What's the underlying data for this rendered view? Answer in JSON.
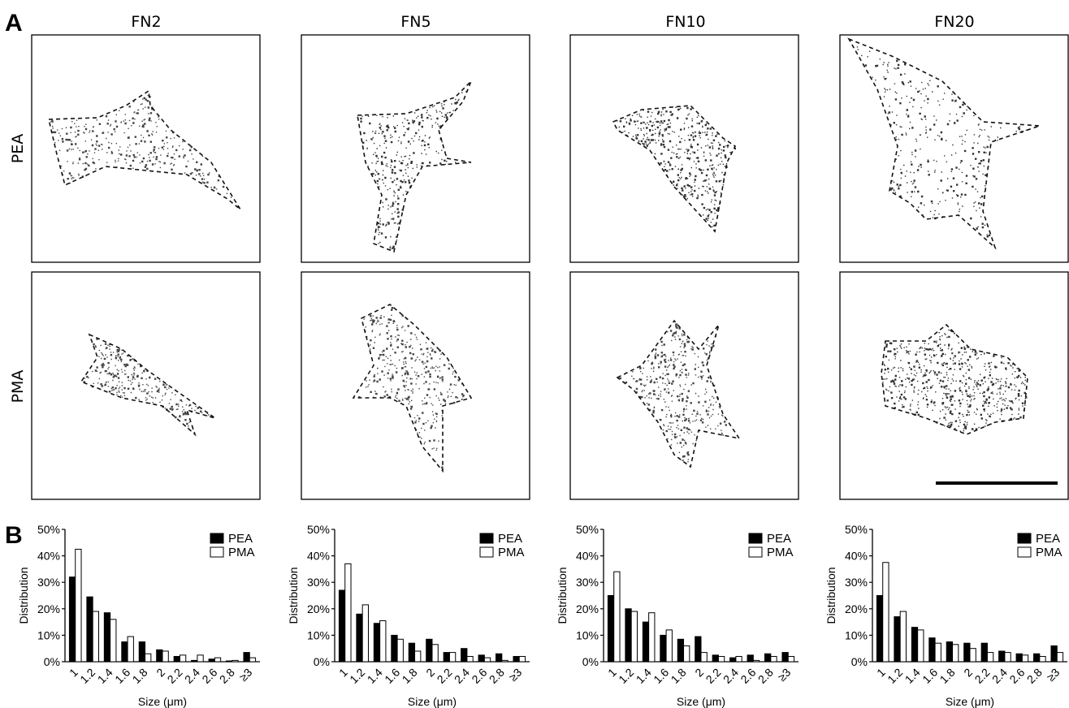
{
  "panel_labels": {
    "a": "A",
    "b": "B"
  },
  "columns": [
    "FN2",
    "FN5",
    "FN10",
    "FN20"
  ],
  "rows": [
    "PEA",
    "PMA"
  ],
  "colors": {
    "pea": "#000000",
    "pma": "#ffffff",
    "stroke": "#000000"
  },
  "chart_data": [
    {
      "type": "bar",
      "categories": [
        "1",
        "1.2",
        "1.4",
        "1.6",
        "1.8",
        "2",
        "2.2",
        "2.4",
        "2.6",
        "2.8",
        "≥3"
      ],
      "series": [
        {
          "name": "PEA",
          "values": [
            32,
            24.5,
            18.5,
            7.5,
            7.5,
            4.5,
            2,
            0.5,
            1,
            0.3,
            3.5
          ]
        },
        {
          "name": "PMA",
          "values": [
            42.5,
            19,
            16,
            9.5,
            3,
            4,
            2.5,
            2.5,
            1.5,
            0.5,
            1.5
          ]
        }
      ],
      "xlabel": "Size (μm)",
      "ylabel": "Distribution",
      "yticks": [
        "0%",
        "10%",
        "20%",
        "30%",
        "40%",
        "50%"
      ],
      "ylim": [
        0,
        50
      ]
    },
    {
      "type": "bar",
      "categories": [
        "1",
        "1.2",
        "1.4",
        "1.6",
        "1.8",
        "2",
        "2.2",
        "2.4",
        "2.6",
        "2.8",
        "≥3"
      ],
      "series": [
        {
          "name": "PEA",
          "values": [
            27,
            18,
            14.5,
            10,
            7,
            8.5,
            3.5,
            5,
            2.5,
            3,
            2
          ]
        },
        {
          "name": "PMA",
          "values": [
            37,
            21.5,
            15.5,
            8.5,
            4,
            6.5,
            3.5,
            2,
            1.5,
            0.5,
            2
          ]
        }
      ],
      "xlabel": "Size (μm)",
      "ylabel": "Distribution",
      "yticks": [
        "0%",
        "10%",
        "20%",
        "30%",
        "40%",
        "50%"
      ],
      "ylim": [
        0,
        50
      ]
    },
    {
      "type": "bar",
      "categories": [
        "1",
        "1.2",
        "1.4",
        "1.6",
        "1.8",
        "2",
        "2.2",
        "2.4",
        "2.6",
        "2.8",
        "≥3"
      ],
      "series": [
        {
          "name": "PEA",
          "values": [
            25,
            20,
            15,
            10,
            8.5,
            9.5,
            2.5,
            1.5,
            2.5,
            3,
            3.5
          ]
        },
        {
          "name": "PMA",
          "values": [
            34,
            19,
            18.5,
            12,
            6,
            3.5,
            2,
            2,
            0.5,
            2,
            2
          ]
        }
      ],
      "xlabel": "Size (μm)",
      "ylabel": "Distribution",
      "yticks": [
        "0%",
        "10%",
        "20%",
        "30%",
        "40%",
        "50%"
      ],
      "ylim": [
        0,
        50
      ]
    },
    {
      "type": "bar",
      "categories": [
        "1",
        "1.2",
        "1.4",
        "1.6",
        "1.8",
        "2",
        "2.2",
        "2.4",
        "2.6",
        "2.8",
        "≥3"
      ],
      "series": [
        {
          "name": "PEA",
          "values": [
            25,
            17,
            13,
            9,
            7.5,
            7,
            7,
            4,
            3,
            3,
            6
          ]
        },
        {
          "name": "PMA",
          "values": [
            37.5,
            19,
            12,
            7,
            6.5,
            5,
            3.5,
            3.5,
            2.5,
            2,
            3.5
          ]
        }
      ],
      "xlabel": "Size (μm)",
      "ylabel": "Distribution",
      "yticks": [
        "0%",
        "10%",
        "20%",
        "30%",
        "40%",
        "50%"
      ],
      "ylim": [
        0,
        50
      ]
    }
  ]
}
